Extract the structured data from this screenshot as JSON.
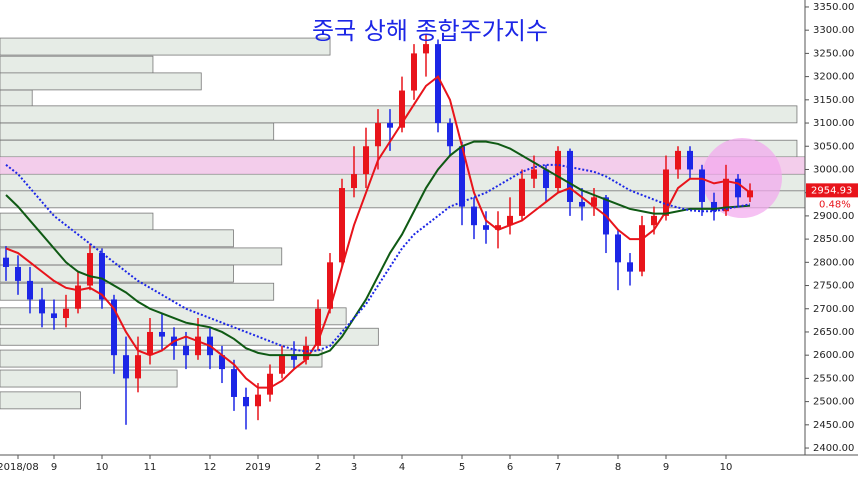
{
  "chart_data": {
    "type": "candlestick",
    "title": "중국 상해 종합주가지수",
    "categories": [
      null,
      "2018/08",
      null,
      null,
      "9",
      null,
      null,
      null,
      "10",
      null,
      null,
      null,
      "11",
      null,
      null,
      null,
      null,
      "12",
      null,
      null,
      null,
      "2019",
      null,
      null,
      null,
      null,
      "2",
      null,
      null,
      "3",
      null,
      null,
      null,
      "4",
      null,
      null,
      null,
      null,
      "5",
      null,
      null,
      null,
      "6",
      null,
      null,
      null,
      "7",
      null,
      null,
      null,
      null,
      "8",
      null,
      null,
      null,
      "9",
      null,
      null,
      null,
      null,
      "10",
      null,
      null
    ],
    "open": [
      2810,
      2790,
      2760,
      2720,
      2690,
      2680,
      2700,
      2750,
      2820,
      2720,
      2600,
      2550,
      2600,
      2650,
      2640,
      2620,
      2600,
      2640,
      2600,
      2570,
      2510,
      2490,
      2515,
      2560,
      2600,
      2590,
      2620,
      2700,
      2800,
      2960,
      2990,
      3050,
      3100,
      3090,
      3170,
      3250,
      3270,
      3100,
      3050,
      2920,
      2880,
      2870,
      2880,
      2900,
      2980,
      3000,
      2960,
      3040,
      2930,
      2920,
      2940,
      2860,
      2800,
      2780,
      2880,
      2900,
      3000,
      3040,
      3000,
      2930,
      2910,
      2980,
      2940
    ],
    "high": [
      2835,
      2815,
      2790,
      2745,
      2720,
      2730,
      2780,
      2840,
      2830,
      2730,
      2640,
      2640,
      2680,
      2690,
      2660,
      2650,
      2680,
      2660,
      2620,
      2590,
      2530,
      2540,
      2580,
      2620,
      2630,
      2640,
      2720,
      2820,
      2980,
      3050,
      3090,
      3130,
      3130,
      3200,
      3270,
      3290,
      3280,
      3110,
      3060,
      2940,
      2910,
      2910,
      2940,
      3000,
      3030,
      3010,
      3050,
      3045,
      2960,
      2960,
      2945,
      2870,
      2820,
      2900,
      2920,
      3030,
      3050,
      3050,
      3010,
      2950,
      3010,
      2990,
      2970
    ],
    "low": [
      2760,
      2730,
      2690,
      2660,
      2655,
      2660,
      2690,
      2740,
      2700,
      2560,
      2450,
      2520,
      2580,
      2610,
      2590,
      2570,
      2590,
      2570,
      2540,
      2480,
      2440,
      2460,
      2500,
      2550,
      2570,
      2580,
      2610,
      2690,
      2790,
      2940,
      2960,
      3000,
      3040,
      3080,
      3150,
      3200,
      3080,
      3030,
      2880,
      2850,
      2840,
      2830,
      2860,
      2890,
      2960,
      2930,
      2950,
      2900,
      2890,
      2900,
      2820,
      2740,
      2750,
      2770,
      2860,
      2890,
      2980,
      2980,
      2900,
      2890,
      2900,
      2920,
      2930
    ],
    "close": [
      2790,
      2760,
      2720,
      2690,
      2680,
      2700,
      2750,
      2820,
      2720,
      2600,
      2550,
      2600,
      2650,
      2640,
      2620,
      2600,
      2640,
      2600,
      2570,
      2510,
      2490,
      2515,
      2560,
      2600,
      2590,
      2620,
      2700,
      2800,
      2960,
      2990,
      3050,
      3100,
      3090,
      3170,
      3250,
      3270,
      3100,
      3050,
      2920,
      2880,
      2870,
      2880,
      2900,
      2980,
      3000,
      2960,
      3040,
      2930,
      2920,
      2940,
      2860,
      2800,
      2780,
      2880,
      2900,
      3000,
      3040,
      3000,
      2930,
      2910,
      2980,
      2940,
      2955
    ],
    "up_color": "#e8141b",
    "down_color": "#1c26e6",
    "series": [
      {
        "color": "#e8141b",
        "dashed": false,
        "values": [
          2830,
          2820,
          2800,
          2780,
          2760,
          2745,
          2740,
          2745,
          2730,
          2700,
          2650,
          2610,
          2600,
          2610,
          2630,
          2640,
          2630,
          2620,
          2600,
          2580,
          2550,
          2530,
          2530,
          2545,
          2570,
          2590,
          2630,
          2700,
          2790,
          2880,
          2950,
          3020,
          3060,
          3100,
          3140,
          3180,
          3200,
          3150,
          3050,
          2950,
          2890,
          2870,
          2880,
          2890,
          2910,
          2930,
          2950,
          2960,
          2940,
          2920,
          2900,
          2870,
          2850,
          2850,
          2870,
          2910,
          2960,
          2980,
          2980,
          2970,
          2975,
          2970,
          2950
        ]
      },
      {
        "color": "#0f5a14",
        "dashed": false,
        "values": [
          2945,
          2920,
          2890,
          2860,
          2830,
          2800,
          2780,
          2770,
          2765,
          2750,
          2735,
          2715,
          2700,
          2690,
          2680,
          2670,
          2665,
          2660,
          2650,
          2635,
          2615,
          2605,
          2600,
          2600,
          2600,
          2600,
          2600,
          2610,
          2640,
          2680,
          2720,
          2770,
          2820,
          2860,
          2910,
          2960,
          3000,
          3030,
          3050,
          3060,
          3060,
          3055,
          3045,
          3030,
          3015,
          3000,
          2985,
          2970,
          2955,
          2945,
          2935,
          2925,
          2915,
          2910,
          2905,
          2905,
          2910,
          2915,
          2915,
          2915,
          2918,
          2920,
          2922
        ]
      },
      {
        "color": "#1c26e6",
        "dashed": true,
        "values": [
          3010,
          2990,
          2960,
          2930,
          2900,
          2880,
          2860,
          2840,
          2820,
          2800,
          2780,
          2760,
          2745,
          2730,
          2715,
          2700,
          2690,
          2680,
          2670,
          2660,
          2650,
          2640,
          2630,
          2620,
          2612,
          2608,
          2610,
          2620,
          2650,
          2680,
          2710,
          2750,
          2790,
          2830,
          2860,
          2880,
          2900,
          2920,
          2930,
          2940,
          2950,
          2965,
          2980,
          2995,
          3005,
          3010,
          3010,
          3005,
          3000,
          2995,
          2985,
          2970,
          2955,
          2945,
          2935,
          2925,
          2918,
          2912,
          2910,
          2910,
          2915,
          2920,
          2925
        ]
      }
    ],
    "volume_profile": {
      "color": "#e6ece6",
      "levels": [
        3283,
        3244,
        3208,
        3171,
        3137,
        3100,
        3063,
        3027,
        2990,
        2954,
        2906,
        2870,
        2831,
        2794,
        2755,
        2702,
        2658,
        2611,
        2568,
        2521
      ],
      "values": [
        41,
        19,
        25,
        4,
        99,
        34,
        99,
        100,
        100,
        100,
        19,
        29,
        35,
        29,
        34,
        43,
        47,
        40,
        22,
        10
      ]
    },
    "ylim": [
      2385,
      3365
    ],
    "yticks": [
      {
        "value": 3350,
        "label": "3350.00"
      },
      {
        "value": 3300,
        "label": "3300.00"
      },
      {
        "value": 3250,
        "label": "3250.00"
      },
      {
        "value": 3200,
        "label": "3200.00"
      },
      {
        "value": 3150,
        "label": "3150.00"
      },
      {
        "value": 3100,
        "label": "3100.00"
      },
      {
        "value": 3050,
        "label": "3050.00"
      },
      {
        "value": 3000,
        "label": "3000.00"
      },
      {
        "value": 2950,
        "label": "2950.00"
      },
      {
        "value": 2900,
        "label": "2900.00"
      },
      {
        "value": 2850,
        "label": "2850.00"
      },
      {
        "value": 2800,
        "label": "2800.00"
      },
      {
        "value": 2750,
        "label": "2750.00"
      },
      {
        "value": 2700,
        "label": "2700.00"
      },
      {
        "value": 2650,
        "label": "2650.00"
      },
      {
        "value": 2600,
        "label": "2600.00"
      },
      {
        "value": 2550,
        "label": "2550.00"
      },
      {
        "value": 2500,
        "label": "2500.00"
      },
      {
        "value": 2450,
        "label": "2450.00"
      },
      {
        "value": 2400,
        "label": "2400.00"
      }
    ],
    "last_price_label": "2954.93",
    "change_label": "0.48%"
  }
}
